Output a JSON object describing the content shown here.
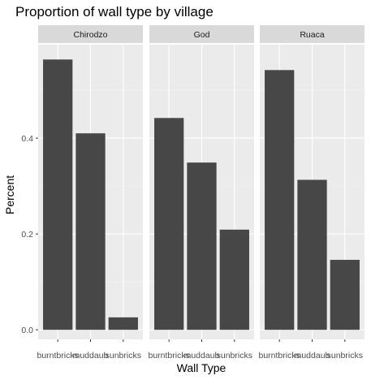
{
  "chart_data": {
    "type": "bar",
    "title": "Proportion of wall type by village",
    "xlabel": "Wall Type",
    "ylabel": "Percent",
    "ylim": [
      -0.02,
      0.595
    ],
    "yticks": [
      0.0,
      0.2,
      0.4
    ],
    "ytick_labels": [
      "0.0",
      "0.2",
      "0.4"
    ],
    "categories": [
      "burntbricks",
      "muddaub",
      "sunbricks"
    ],
    "category_labels": [
      "burntbricks",
      "muddaub",
      "sunbricks"
    ],
    "grid": true,
    "colors": {
      "panel_bg": "#ebebeb",
      "grid_major": "#ffffff",
      "grid_minor": "#f5f5f5",
      "bar": "#474747",
      "strip_bg": "#d9d9d9",
      "tick": "#333333"
    },
    "facets": [
      {
        "name": "Chirodzo",
        "values": [
          0.564,
          0.41,
          0.026
        ]
      },
      {
        "name": "God",
        "values": [
          0.442,
          0.349,
          0.209
        ]
      },
      {
        "name": "Ruaca",
        "values": [
          0.542,
          0.313,
          0.146
        ]
      }
    ]
  }
}
